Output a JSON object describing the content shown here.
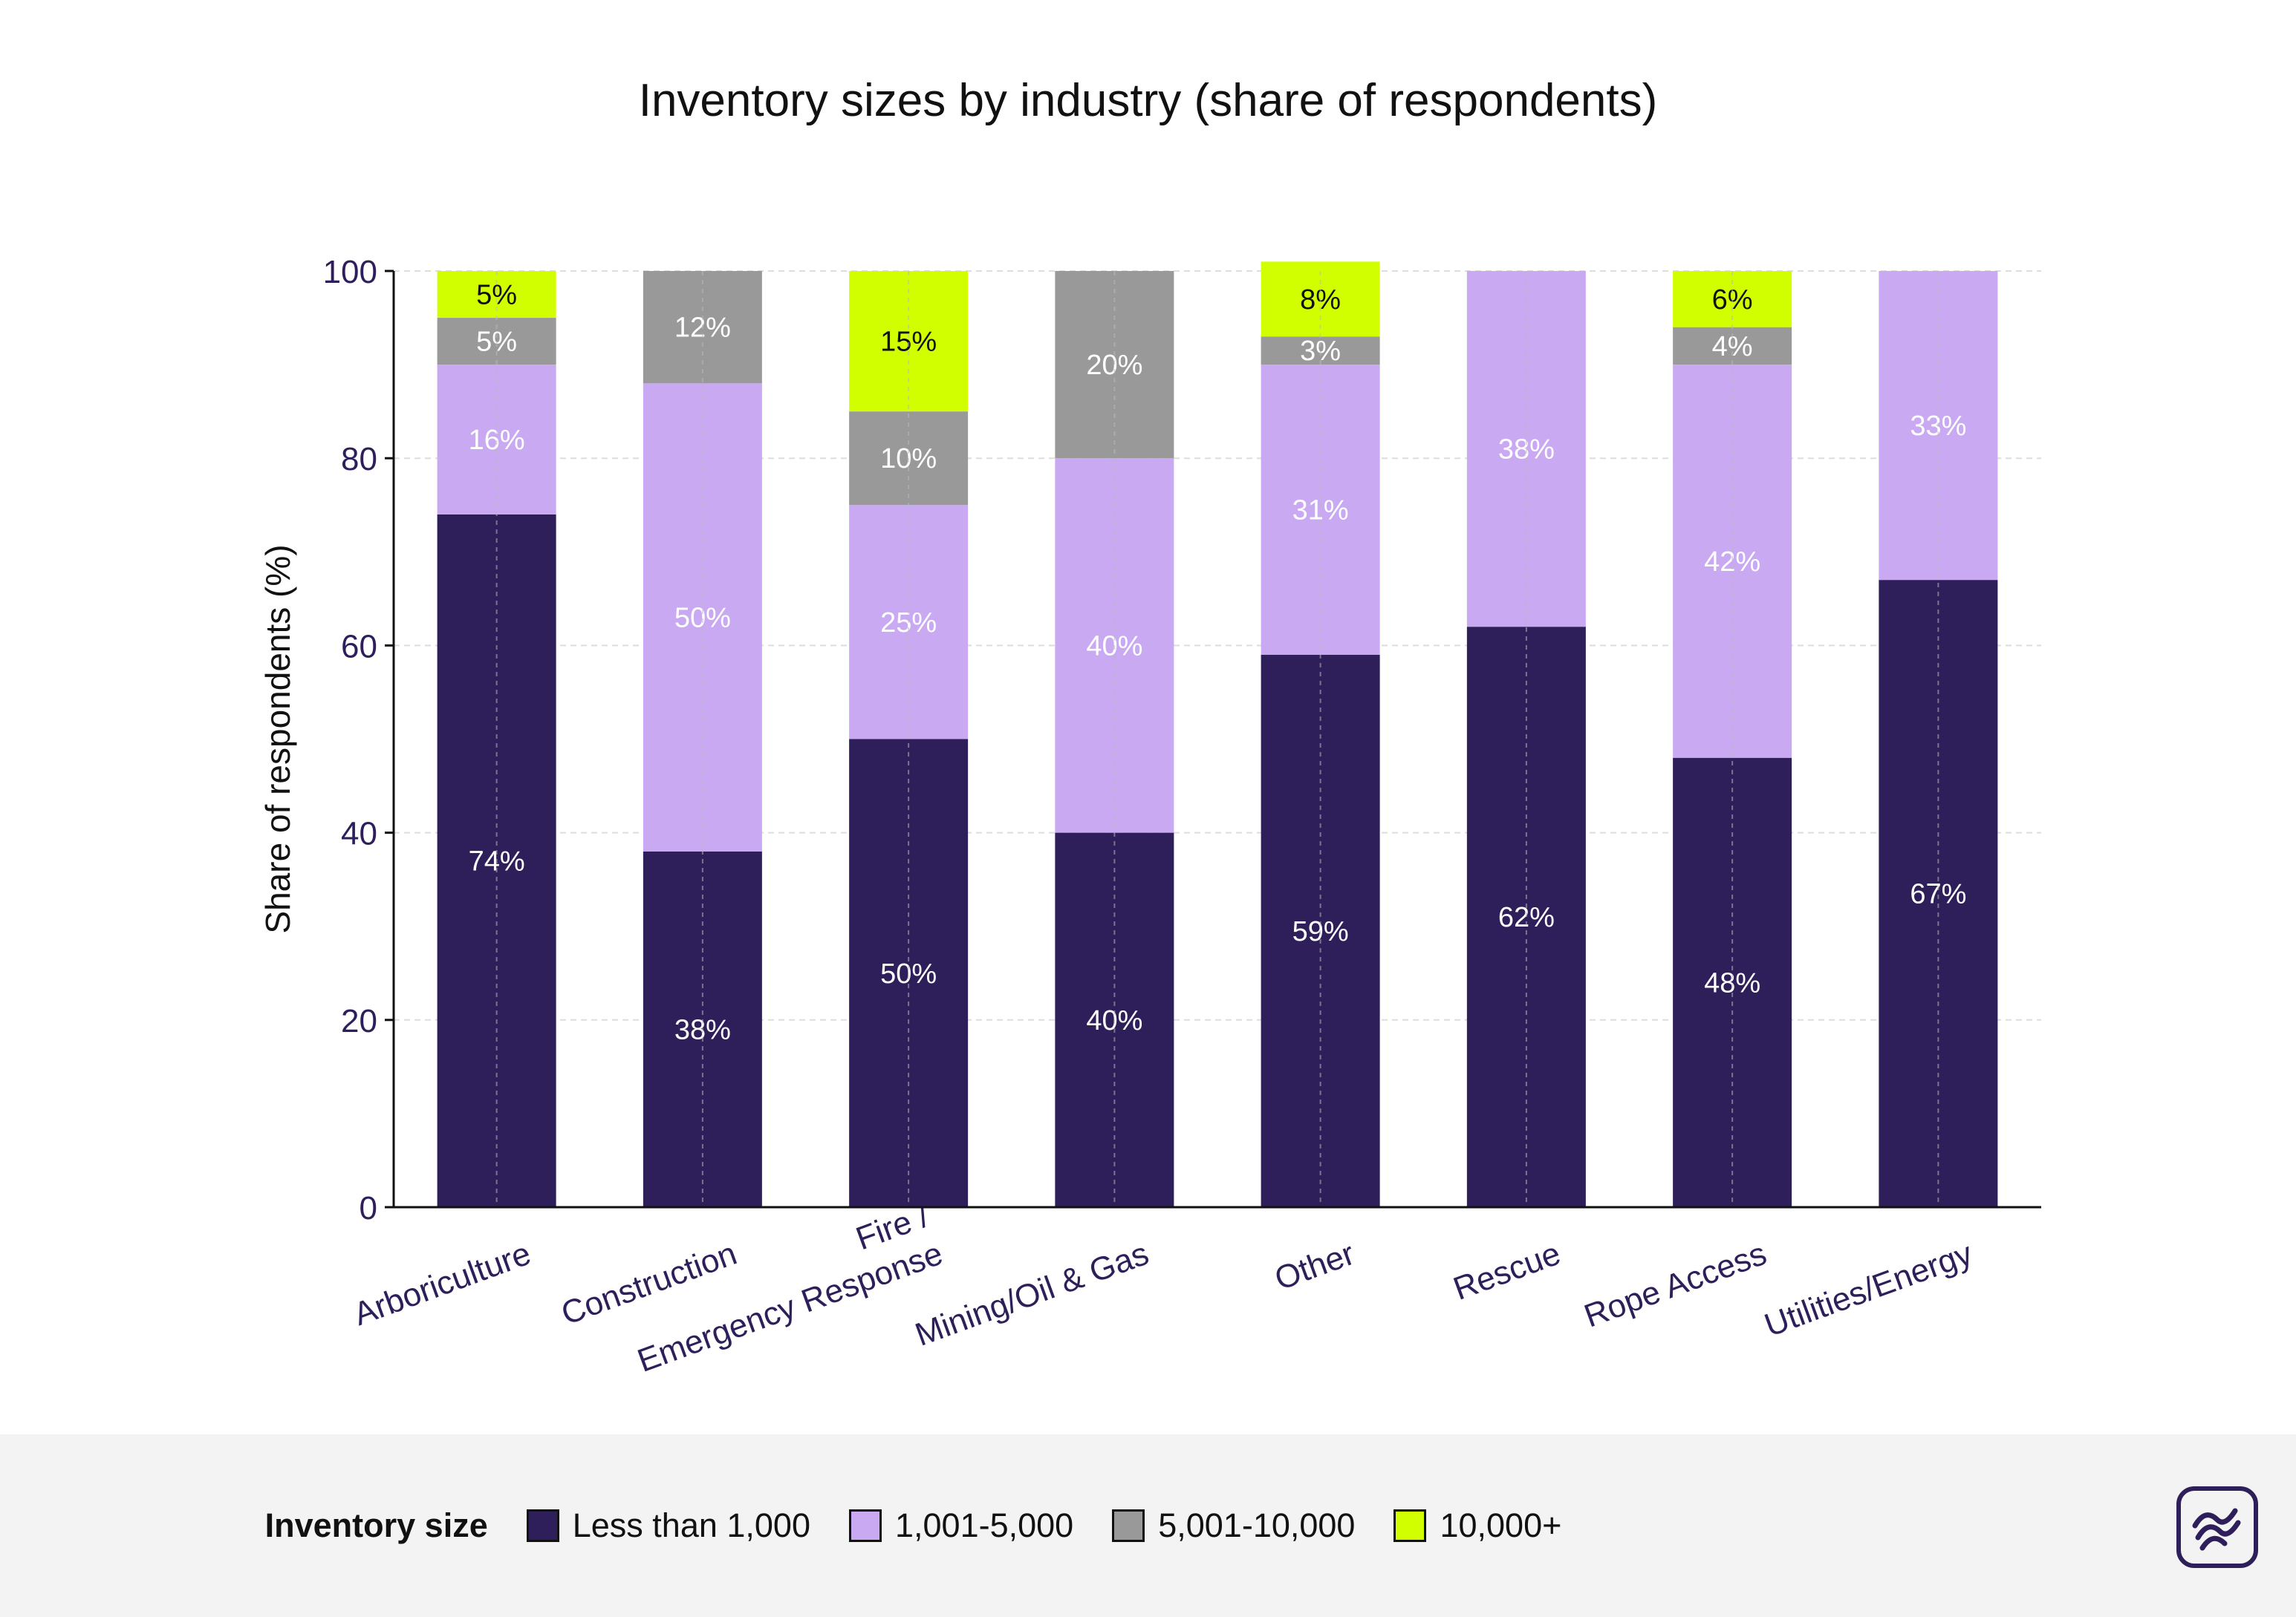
{
  "chart_data": {
    "type": "bar",
    "stacked": true,
    "title": "Inventory sizes by industry (share of respondents)",
    "xlabel": "",
    "ylabel": "Share of respondents (%)",
    "ylim": [
      0,
      100
    ],
    "yticks": [
      0,
      20,
      40,
      60,
      80,
      100
    ],
    "grid": true,
    "categories": [
      "Arboriculture",
      "Construction",
      "Fire / Emergency Response",
      "Mining/Oil & Gas",
      "Other",
      "Rescue",
      "Rope Access",
      "Utilities/Energy"
    ],
    "series": [
      {
        "name": "Less than 1,000",
        "color": "#2e1f5a",
        "label_color": "#ffffff",
        "values": [
          74,
          38,
          50,
          40,
          59,
          62,
          48,
          67
        ]
      },
      {
        "name": "1,001-5,000",
        "color": "#c8a9f2",
        "label_color": "#ffffff",
        "values": [
          16,
          50,
          25,
          40,
          31,
          38,
          42,
          33
        ]
      },
      {
        "name": "5,001-10,000",
        "color": "#999999",
        "label_color": "#ffffff",
        "values": [
          5,
          12,
          10,
          20,
          3,
          0,
          4,
          0
        ]
      },
      {
        "name": "10,000+",
        "color": "#d2ff00",
        "label_color": "#111111",
        "values": [
          5,
          0,
          15,
          0,
          8,
          0,
          6,
          0
        ]
      }
    ],
    "legend_title": "Inventory size",
    "legend_position": "bottom"
  },
  "colors": {
    "axis": "#111111",
    "tick_label": "#2e1f5a",
    "category_label": "#2e1f5a",
    "grid": "#dddddd",
    "footer_bg": "#f3f3f3"
  },
  "logo_icon": "brand-waves-icon"
}
